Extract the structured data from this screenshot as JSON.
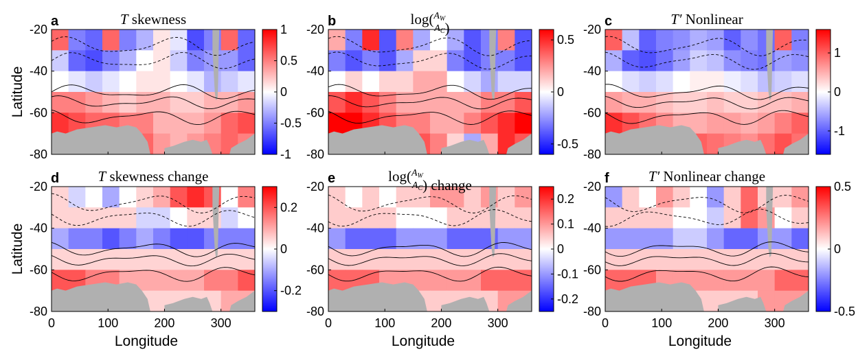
{
  "figure": {
    "ylabel": "Latitude",
    "xlabel": "Longitude",
    "colormap": {
      "low": "#0000ff",
      "mid": "#ffffff",
      "high": "#ff0000"
    },
    "land_color": "#b0b0b0"
  },
  "chart_data": [
    {
      "type": "heatmap",
      "letter": "a",
      "title_parts": [
        {
          "t": "T",
          "i": true
        },
        {
          "t": " skewness"
        }
      ],
      "xlim": [
        0,
        360
      ],
      "ylim": [
        -80,
        -20
      ],
      "xticks": [
        "0",
        "100",
        "200",
        "300"
      ],
      "yticks": [
        "-20",
        "-40",
        "-60",
        "-80"
      ],
      "show_xticks": false,
      "show_ylabel": true,
      "show_xlabel": false,
      "colorbar": {
        "min": -1,
        "max": 1,
        "ticks": [
          "1",
          "0.5",
          "0",
          "-0.5",
          "-1"
        ]
      },
      "field": [
        [
          0.6,
          -0.5,
          -0.6,
          0.6,
          -0.5,
          -0.3,
          0.1,
          -0.1,
          -0.7,
          -0.5,
          0.6,
          -0.6
        ],
        [
          -0.2,
          -0.6,
          -0.7,
          -0.5,
          -0.3,
          0.0,
          0.1,
          -0.2,
          -0.5,
          -0.4,
          -0.4,
          -0.6
        ],
        [
          0.0,
          -0.1,
          -0.2,
          -0.1,
          0.0,
          0.1,
          0.1,
          0.0,
          -0.1,
          -0.3,
          -0.2,
          -0.1
        ],
        [
          0.5,
          0.5,
          0.4,
          0.3,
          0.2,
          0.3,
          0.3,
          0.2,
          0.2,
          0.3,
          0.3,
          0.4
        ],
        [
          0.8,
          0.7,
          0.6,
          0.6,
          0.5,
          0.5,
          0.3,
          0.3,
          0.3,
          0.4,
          0.6,
          0.7
        ],
        [
          0.6,
          0.5,
          0.5,
          0.4,
          0.4,
          0.6,
          0.4,
          0.3,
          0.4,
          0.5,
          0.6,
          0.5
        ]
      ]
    },
    {
      "type": "heatmap",
      "letter": "b",
      "title_parts": [
        {
          "t": "log("
        },
        {
          "t": "A",
          "i": true,
          "sub": "W",
          "over": true
        },
        {
          "t": "A",
          "i": true,
          "sub": "C",
          "under": true
        },
        {
          "t": ")"
        }
      ],
      "xlim": [
        0,
        360
      ],
      "ylim": [
        -80,
        -20
      ],
      "xticks": [
        "0",
        "100",
        "200",
        "300"
      ],
      "yticks": [
        "-20",
        "-40",
        "-60",
        "-80"
      ],
      "show_xticks": false,
      "show_ylabel": false,
      "show_xlabel": false,
      "colorbar": {
        "min": -0.6,
        "max": 0.6,
        "ticks": [
          "0.5",
          "0",
          "-0.5"
        ]
      },
      "field": [
        [
          0.2,
          -0.3,
          0.5,
          -0.4,
          0.3,
          -0.2,
          0.0,
          -0.2,
          -0.4,
          -0.3,
          0.3,
          -0.4
        ],
        [
          -0.3,
          -0.4,
          -0.3,
          -0.4,
          -0.2,
          0.1,
          0.1,
          -0.3,
          -0.4,
          -0.3,
          -0.3,
          -0.4
        ],
        [
          0.0,
          0.1,
          0.0,
          0.1,
          0.1,
          0.2,
          0.2,
          0.0,
          -0.1,
          -0.2,
          -0.1,
          -0.1
        ],
        [
          0.4,
          0.5,
          0.4,
          0.3,
          0.2,
          0.2,
          0.2,
          0.2,
          0.2,
          0.3,
          0.3,
          0.4
        ],
        [
          0.6,
          0.6,
          0.5,
          0.4,
          0.3,
          0.3,
          0.2,
          0.2,
          0.3,
          0.4,
          0.5,
          0.6
        ],
        [
          0.4,
          0.4,
          0.4,
          0.3,
          0.3,
          0.4,
          0.3,
          0.1,
          -0.2,
          0.2,
          0.5,
          0.4
        ]
      ]
    },
    {
      "type": "heatmap",
      "letter": "c",
      "title_parts": [
        {
          "t": "T′",
          "i": true
        },
        {
          "t": " Nonlinear"
        }
      ],
      "xlim": [
        0,
        360
      ],
      "ylim": [
        -80,
        -20
      ],
      "xticks": [
        "0",
        "100",
        "200",
        "300"
      ],
      "yticks": [
        "-20",
        "-40",
        "-60",
        "-80"
      ],
      "show_xticks": false,
      "show_ylabel": false,
      "show_xlabel": false,
      "colorbar": {
        "min": -1.6,
        "max": 1.6,
        "ticks": [
          "1",
          "0",
          "-1"
        ]
      },
      "field": [
        [
          1.0,
          -0.4,
          -1.0,
          -0.8,
          -0.7,
          -0.5,
          -0.6,
          -1.0,
          -0.7,
          -0.9,
          1.0,
          -0.8
        ],
        [
          -0.5,
          -1.0,
          -1.1,
          -0.9,
          -0.6,
          -0.3,
          -0.4,
          -0.7,
          -0.8,
          -0.9,
          -0.6,
          -0.7
        ],
        [
          0.0,
          -0.2,
          -0.3,
          -0.2,
          0.0,
          0.1,
          0.1,
          -0.1,
          -0.2,
          -0.4,
          -0.3,
          -0.2
        ],
        [
          0.6,
          0.5,
          0.5,
          0.4,
          0.3,
          0.3,
          0.4,
          0.3,
          0.3,
          0.4,
          0.4,
          0.5
        ],
        [
          1.3,
          1.1,
          0.9,
          0.7,
          0.5,
          0.5,
          0.6,
          0.6,
          0.5,
          0.6,
          0.8,
          1.0
        ],
        [
          0.7,
          0.6,
          0.6,
          0.5,
          0.8,
          1.0,
          0.9,
          0.8,
          0.7,
          0.9,
          1.1,
          0.9
        ]
      ]
    },
    {
      "type": "heatmap",
      "letter": "d",
      "title_parts": [
        {
          "t": "T",
          "i": true
        },
        {
          "t": " skewness change"
        }
      ],
      "xlim": [
        0,
        360
      ],
      "ylim": [
        -80,
        -20
      ],
      "xticks": [
        "0",
        "100",
        "200",
        "300"
      ],
      "yticks": [
        "-20",
        "-40",
        "-60",
        "-80"
      ],
      "show_xticks": true,
      "show_ylabel": true,
      "show_xlabel": true,
      "colorbar": {
        "min": -0.3,
        "max": 0.3,
        "ticks": [
          "0.2",
          "0",
          "-0.2"
        ]
      },
      "field": [
        [
          0.05,
          -0.05,
          0.0,
          -0.1,
          0.0,
          0.05,
          0.1,
          0.2,
          0.25,
          0.2,
          0.0,
          0.15
        ],
        [
          0.05,
          0.05,
          0.05,
          0.05,
          0.05,
          -0.05,
          -0.05,
          0.0,
          0.05,
          0.05,
          -0.05,
          0.0
        ],
        [
          -0.1,
          -0.15,
          -0.15,
          -0.2,
          -0.15,
          -0.1,
          -0.15,
          -0.2,
          -0.2,
          -0.15,
          -0.15,
          -0.15
        ],
        [
          0.05,
          0.05,
          0.05,
          0.05,
          0.05,
          0.05,
          0.05,
          0.05,
          0.05,
          0.05,
          0.05,
          0.05
        ],
        [
          0.2,
          0.2,
          0.15,
          0.15,
          0.1,
          0.1,
          0.1,
          0.1,
          0.1,
          0.15,
          0.15,
          0.2
        ],
        [
          0.1,
          0.1,
          0.1,
          0.05,
          0.05,
          0.05,
          0.05,
          0.05,
          0.05,
          0.05,
          0.1,
          0.1
        ]
      ]
    },
    {
      "type": "heatmap",
      "letter": "e",
      "title_parts": [
        {
          "t": "log("
        },
        {
          "t": "A",
          "i": true,
          "sub": "W",
          "over": true
        },
        {
          "t": "A",
          "i": true,
          "sub": "C",
          "under": true
        },
        {
          "t": ") change"
        }
      ],
      "xlim": [
        0,
        360
      ],
      "ylim": [
        -80,
        -20
      ],
      "xticks": [
        "0",
        "100",
        "200",
        "300"
      ],
      "yticks": [
        "-20",
        "-40",
        "-60",
        "-80"
      ],
      "show_xticks": true,
      "show_ylabel": false,
      "show_xlabel": true,
      "colorbar": {
        "min": -0.25,
        "max": 0.25,
        "ticks": [
          "0.2",
          "0.1",
          "0",
          "-0.1",
          "-0.2"
        ]
      },
      "field": [
        [
          0.05,
          0.0,
          0.05,
          0.0,
          0.05,
          0.05,
          0.1,
          0.1,
          0.05,
          0.1,
          0.05,
          0.1
        ],
        [
          0.05,
          0.05,
          0.05,
          0.05,
          0.0,
          0.0,
          0.0,
          0.05,
          0.05,
          0.05,
          0.05,
          0.05
        ],
        [
          -0.1,
          -0.15,
          -0.15,
          -0.15,
          -0.1,
          -0.1,
          -0.1,
          -0.15,
          -0.15,
          -0.15,
          -0.1,
          -0.1
        ],
        [
          0.05,
          0.05,
          0.05,
          0.05,
          0.05,
          0.05,
          0.05,
          0.05,
          0.05,
          0.05,
          0.05,
          0.05
        ],
        [
          0.15,
          0.15,
          0.15,
          0.1,
          0.1,
          0.1,
          0.1,
          0.1,
          0.1,
          0.15,
          0.15,
          0.15
        ],
        [
          0.1,
          0.1,
          0.1,
          0.05,
          0.05,
          0.05,
          0.05,
          0.05,
          0.05,
          0.05,
          0.1,
          0.1
        ]
      ]
    },
    {
      "type": "heatmap",
      "letter": "f",
      "title_parts": [
        {
          "t": "T′",
          "i": true
        },
        {
          "t": " Nonlinear change"
        }
      ],
      "xlim": [
        0,
        360
      ],
      "ylim": [
        -80,
        -20
      ],
      "xticks": [
        "0",
        "100",
        "200",
        "300"
      ],
      "yticks": [
        "-20",
        "-40",
        "-60",
        "-80"
      ],
      "show_xticks": true,
      "show_ylabel": false,
      "show_xlabel": true,
      "colorbar": {
        "min": -0.5,
        "max": 0.5,
        "ticks": [
          "0.5",
          "0",
          "-0.5"
        ]
      },
      "field": [
        [
          -0.2,
          0.1,
          0.0,
          0.2,
          0.1,
          0.0,
          -0.2,
          0.1,
          0.3,
          0.1,
          0.1,
          0.2
        ],
        [
          0.1,
          0.1,
          0.1,
          0.1,
          0.0,
          0.0,
          -0.1,
          0.1,
          0.3,
          0.2,
          0.0,
          0.1
        ],
        [
          -0.2,
          -0.2,
          -0.2,
          -0.2,
          -0.1,
          -0.1,
          -0.2,
          -0.3,
          -0.3,
          -0.2,
          -0.2,
          -0.3
        ],
        [
          0.1,
          0.1,
          0.1,
          0.1,
          0.1,
          0.1,
          0.1,
          0.1,
          0.1,
          0.1,
          0.1,
          0.1
        ],
        [
          0.3,
          0.3,
          0.3,
          0.2,
          0.2,
          0.2,
          0.2,
          0.2,
          0.2,
          0.2,
          0.3,
          0.3
        ],
        [
          0.2,
          0.2,
          0.2,
          0.2,
          0.1,
          0.1,
          0.1,
          0.1,
          0.1,
          0.2,
          0.2,
          0.2
        ]
      ]
    }
  ]
}
